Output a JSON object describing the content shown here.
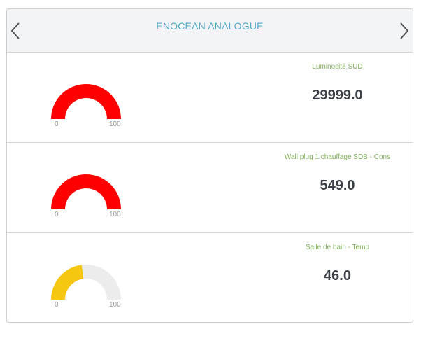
{
  "header": {
    "title": "ENOCEAN ANALOGUE",
    "prev_icon": "chevron-left-icon",
    "next_icon": "chevron-right-icon"
  },
  "colors": {
    "accent_title": "#5aa9c8",
    "label_green": "#7fae5b",
    "gauge_red": "#ff0000",
    "gauge_yellow": "#f5c710",
    "gauge_track": "#ececec"
  },
  "sensors": [
    {
      "label": "Luminosité SUD",
      "value": "29999.0",
      "gauge_min": "0",
      "gauge_max": "100",
      "gauge_fraction": 1.0,
      "gauge_color": "#ff0000"
    },
    {
      "label": "Wall plug 1 chauffage SDB - Cons",
      "value": "549.0",
      "gauge_min": "0",
      "gauge_max": "100",
      "gauge_fraction": 1.0,
      "gauge_color": "#ff0000"
    },
    {
      "label": "Salle de bain - Temp",
      "value": "46.0",
      "gauge_min": "0",
      "gauge_max": "100",
      "gauge_fraction": 0.46,
      "gauge_color": "#f5c710"
    }
  ]
}
